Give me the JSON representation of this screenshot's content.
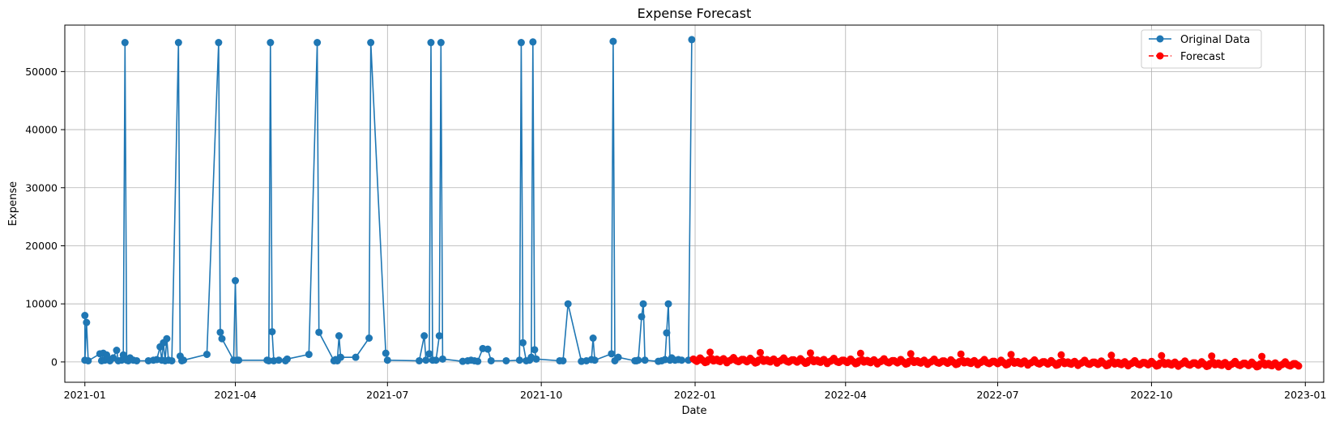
{
  "chart_data": {
    "type": "line",
    "title": "Expense Forecast",
    "xlabel": "Date",
    "ylabel": "Expense",
    "x_range": [
      "2020-12-20",
      "2023-01-12"
    ],
    "ylim": [
      -3500,
      58000
    ],
    "x_ticks": [
      "2021-01-01",
      "2021-04-01",
      "2021-07-01",
      "2021-10-01",
      "2022-01-01",
      "2022-04-01",
      "2022-07-01",
      "2022-10-01",
      "2023-01-01"
    ],
    "x_tick_labels": [
      "2021-01",
      "2021-04",
      "2021-07",
      "2021-10",
      "2022-01",
      "2022-04",
      "2022-07",
      "2022-10",
      "2023-01"
    ],
    "y_ticks": [
      0,
      10000,
      20000,
      30000,
      40000,
      50000
    ],
    "y_tick_labels": [
      "0",
      "10000",
      "20000",
      "30000",
      "40000",
      "50000"
    ],
    "grid": true,
    "legend_position": "top-right",
    "series": [
      {
        "name": "Original Data",
        "color": "#1f77b4",
        "line_style": "solid",
        "marker": "circle",
        "points": [
          [
            "2021-01-01",
            8000
          ],
          [
            "2021-01-01",
            300
          ],
          [
            "2021-01-02",
            6800
          ],
          [
            "2021-01-03",
            200
          ],
          [
            "2021-01-10",
            1400
          ],
          [
            "2021-01-11",
            200
          ],
          [
            "2021-01-12",
            1500
          ],
          [
            "2021-01-13",
            300
          ],
          [
            "2021-01-14",
            1200
          ],
          [
            "2021-01-15",
            500
          ],
          [
            "2021-01-16",
            200
          ],
          [
            "2021-01-18",
            700
          ],
          [
            "2021-01-20",
            2000
          ],
          [
            "2021-01-21",
            200
          ],
          [
            "2021-01-23",
            300
          ],
          [
            "2021-01-24",
            1200
          ],
          [
            "2021-01-25",
            55000
          ],
          [
            "2021-01-26",
            300
          ],
          [
            "2021-01-27",
            200
          ],
          [
            "2021-01-28",
            700
          ],
          [
            "2021-01-30",
            300
          ],
          [
            "2021-02-01",
            200
          ],
          [
            "2021-02-08",
            200
          ],
          [
            "2021-02-11",
            300
          ],
          [
            "2021-02-13",
            400
          ],
          [
            "2021-02-15",
            2600
          ],
          [
            "2021-02-16",
            300
          ],
          [
            "2021-02-17",
            3300
          ],
          [
            "2021-02-18",
            200
          ],
          [
            "2021-02-19",
            4000
          ],
          [
            "2021-02-20",
            300
          ],
          [
            "2021-02-22",
            200
          ],
          [
            "2021-02-26",
            55000
          ],
          [
            "2021-02-27",
            1000
          ],
          [
            "2021-02-28",
            200
          ],
          [
            "2021-03-01",
            300
          ],
          [
            "2021-03-15",
            1300
          ],
          [
            "2021-03-22",
            55000
          ],
          [
            "2021-03-23",
            5100
          ],
          [
            "2021-03-24",
            4000
          ],
          [
            "2021-03-31",
            300
          ],
          [
            "2021-04-01",
            14000
          ],
          [
            "2021-04-02",
            300
          ],
          [
            "2021-04-03",
            300
          ],
          [
            "2021-04-20",
            300
          ],
          [
            "2021-04-21",
            200
          ],
          [
            "2021-04-22",
            55000
          ],
          [
            "2021-04-23",
            5200
          ],
          [
            "2021-04-24",
            200
          ],
          [
            "2021-04-27",
            300
          ],
          [
            "2021-05-01",
            200
          ],
          [
            "2021-05-02",
            500
          ],
          [
            "2021-05-15",
            1300
          ],
          [
            "2021-05-20",
            55000
          ],
          [
            "2021-05-21",
            5100
          ],
          [
            "2021-05-30",
            200
          ],
          [
            "2021-05-31",
            400
          ],
          [
            "2021-06-01",
            200
          ],
          [
            "2021-06-02",
            4500
          ],
          [
            "2021-06-03",
            800
          ],
          [
            "2021-06-12",
            800
          ],
          [
            "2021-06-20",
            4100
          ],
          [
            "2021-06-21",
            55000
          ],
          [
            "2021-06-30",
            1500
          ],
          [
            "2021-07-01",
            300
          ],
          [
            "2021-07-20",
            200
          ],
          [
            "2021-07-23",
            4500
          ],
          [
            "2021-07-24",
            300
          ],
          [
            "2021-07-26",
            1400
          ],
          [
            "2021-07-27",
            55000
          ],
          [
            "2021-07-28",
            300
          ],
          [
            "2021-07-30",
            300
          ],
          [
            "2021-08-01",
            4500
          ],
          [
            "2021-08-02",
            55000
          ],
          [
            "2021-08-03",
            500
          ],
          [
            "2021-08-15",
            100
          ],
          [
            "2021-08-18",
            200
          ],
          [
            "2021-08-20",
            300
          ],
          [
            "2021-08-22",
            200
          ],
          [
            "2021-08-24",
            100
          ],
          [
            "2021-08-27",
            2300
          ],
          [
            "2021-08-30",
            2200
          ],
          [
            "2021-09-01",
            200
          ],
          [
            "2021-09-10",
            200
          ],
          [
            "2021-09-18",
            300
          ],
          [
            "2021-09-19",
            55000
          ],
          [
            "2021-09-20",
            3300
          ],
          [
            "2021-09-22",
            200
          ],
          [
            "2021-09-24",
            300
          ],
          [
            "2021-09-25",
            800
          ],
          [
            "2021-09-26",
            55100
          ],
          [
            "2021-09-27",
            2100
          ],
          [
            "2021-09-28",
            500
          ],
          [
            "2021-10-12",
            200
          ],
          [
            "2021-10-14",
            200
          ],
          [
            "2021-10-17",
            10000
          ],
          [
            "2021-10-25",
            100
          ],
          [
            "2021-10-28",
            200
          ],
          [
            "2021-10-31",
            400
          ],
          [
            "2021-11-01",
            4100
          ],
          [
            "2021-11-02",
            300
          ],
          [
            "2021-11-12",
            1400
          ],
          [
            "2021-11-13",
            55200
          ],
          [
            "2021-11-14",
            200
          ],
          [
            "2021-11-16",
            800
          ],
          [
            "2021-11-26",
            200
          ],
          [
            "2021-11-27",
            200
          ],
          [
            "2021-11-28",
            300
          ],
          [
            "2021-11-30",
            7800
          ],
          [
            "2021-12-01",
            10000
          ],
          [
            "2021-12-02",
            300
          ],
          [
            "2021-12-10",
            100
          ],
          [
            "2021-12-12",
            200
          ],
          [
            "2021-12-14",
            400
          ],
          [
            "2021-12-15",
            5000
          ],
          [
            "2021-12-16",
            10000
          ],
          [
            "2021-12-17",
            300
          ],
          [
            "2021-12-18",
            700
          ],
          [
            "2021-12-20",
            300
          ],
          [
            "2021-12-22",
            400
          ],
          [
            "2021-12-24",
            300
          ],
          [
            "2021-12-28",
            300
          ],
          [
            "2021-12-30",
            55500
          ]
        ]
      },
      {
        "name": "Forecast",
        "color": "#ff0000",
        "line_style": "dashed",
        "marker": "circle",
        "start_date": "2021-12-31",
        "day_step": 1,
        "period_days": 30,
        "values_first_period": [
          500,
          300,
          100,
          300,
          700,
          400,
          200,
          -100,
          0,
          400,
          1700,
          600,
          200,
          300,
          500,
          200,
          100,
          400,
          600,
          300,
          -100,
          200,
          300,
          500,
          800,
          400,
          200,
          100,
          300,
          500
        ],
        "trend_per_day": -2.2
      }
    ]
  }
}
